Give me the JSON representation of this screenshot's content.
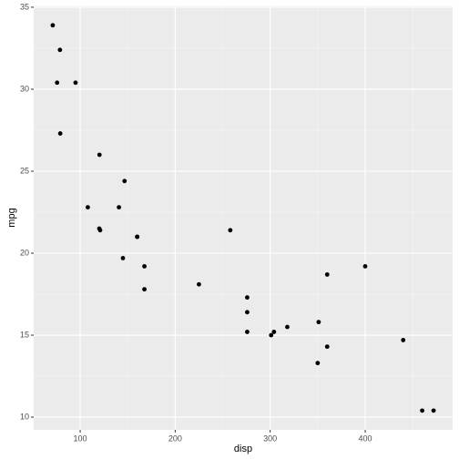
{
  "chart_data": {
    "type": "scatter",
    "x_label": "disp",
    "y_label": "mpg",
    "series": [
      {
        "color": "#000000",
        "x": [
          160,
          160,
          108,
          258,
          360,
          225,
          360,
          146.7,
          140.8,
          167.6,
          167.6,
          275.8,
          275.8,
          275.8,
          472,
          460,
          440,
          78.7,
          75.7,
          71.1,
          120.1,
          318,
          304,
          350,
          400,
          79,
          120.3,
          95.1,
          351,
          145,
          301,
          121
        ],
        "values": [
          21.0,
          21.0,
          22.8,
          21.4,
          18.7,
          18.1,
          14.3,
          24.4,
          22.8,
          19.2,
          17.8,
          16.4,
          17.3,
          15.2,
          10.4,
          10.4,
          14.7,
          32.4,
          30.4,
          33.9,
          21.5,
          15.5,
          15.2,
          13.3,
          19.2,
          27.3,
          26.0,
          30.4,
          15.8,
          19.7,
          15.0,
          21.4
        ]
      }
    ],
    "xlim": [
      51.055,
      492.045
    ],
    "xticks": [
      100,
      200,
      300,
      400
    ],
    "ylim": [
      9.225,
      35.075
    ],
    "yticks": [
      10,
      15,
      20,
      25,
      30,
      35
    ],
    "grid": true,
    "minor_grid": true
  }
}
